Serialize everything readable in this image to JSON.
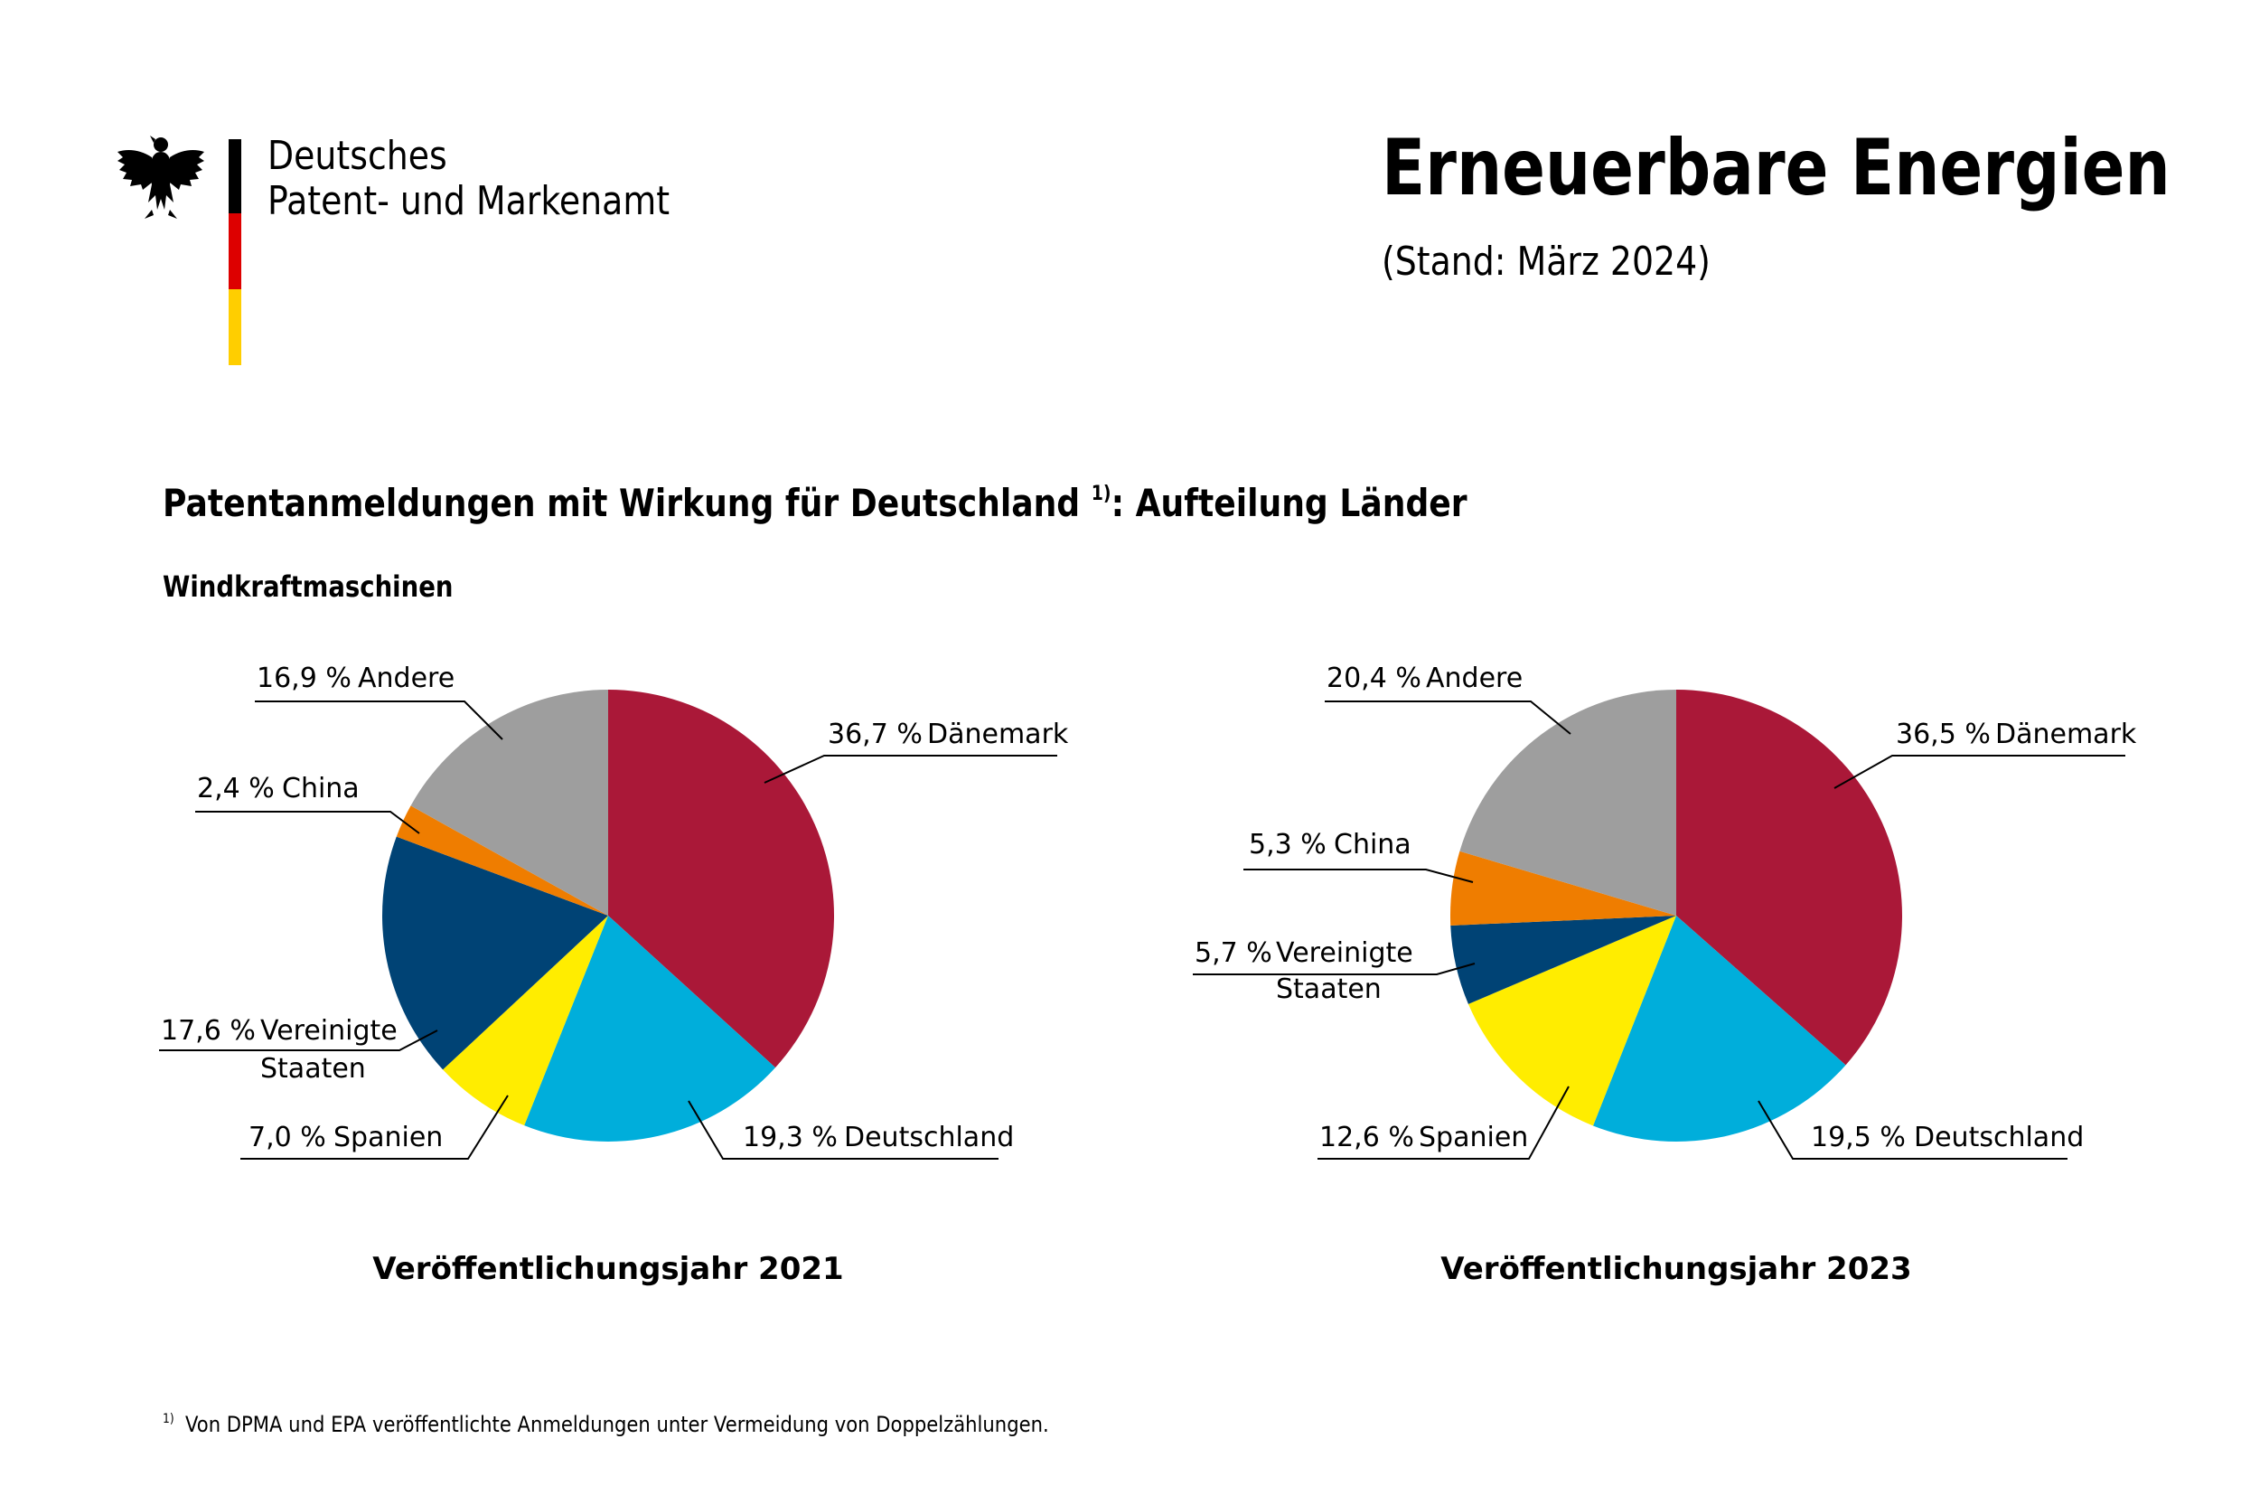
{
  "header": {
    "org_name_line1": "Deutsches",
    "org_name_line2": "Patent- und Markenamt",
    "title": "Erneuerbare Energien",
    "subtitle": "(Stand: März 2024)",
    "flag_colors": [
      "#000000",
      "#dd0000",
      "#ffce00"
    ]
  },
  "chart_title": "Patentanmeldungen mit Wirkung für Deutschland",
  "chart_title_sup": "1)",
  "chart_title_suffix": ": Aufteilung Länder",
  "chart_subtitle": "Windkraftmaschinen",
  "footnote": {
    "marker": "1)",
    "text": "Von DPMA und EPA veröffentlichte Anmeldungen unter Vermeidung von Doppelzählungen."
  },
  "chart_data": [
    {
      "type": "pie",
      "title": "Veröffentlichungsjahr 2021",
      "slices": [
        {
          "label": "Dänemark",
          "value": 36.7,
          "value_label": "36,7 %",
          "color": "#aa1838"
        },
        {
          "label": "Deutschland",
          "value": 19.3,
          "value_label": "19,3 %",
          "color": "#00aedb"
        },
        {
          "label": "Spanien",
          "value": 7.0,
          "value_label": "7,0 %",
          "color": "#ffed00"
        },
        {
          "label": "Vereinigte Staaten",
          "value": 17.6,
          "value_label": "17,6 %",
          "color": "#004375"
        },
        {
          "label": "China",
          "value": 2.4,
          "value_label": "2,4 %",
          "color": "#ef7d00"
        },
        {
          "label": "Andere",
          "value": 16.9,
          "value_label": "16,9 %",
          "color": "#9e9e9e"
        }
      ]
    },
    {
      "type": "pie",
      "title": "Veröffentlichungsjahr 2023",
      "slices": [
        {
          "label": "Dänemark",
          "value": 36.5,
          "value_label": "36,5 %",
          "color": "#aa1838"
        },
        {
          "label": "Deutschland",
          "value": 19.5,
          "value_label": "19,5 %",
          "color": "#00aedb"
        },
        {
          "label": "Spanien",
          "value": 12.6,
          "value_label": "12,6 %",
          "color": "#ffed00"
        },
        {
          "label": "Vereinigte Staaten",
          "value": 5.7,
          "value_label": "5,7 %",
          "color": "#004375"
        },
        {
          "label": "China",
          "value": 5.3,
          "value_label": "5,3 %",
          "color": "#ef7d00"
        },
        {
          "label": "Andere",
          "value": 20.4,
          "value_label": "20,4 %",
          "color": "#9e9e9e"
        }
      ]
    }
  ]
}
